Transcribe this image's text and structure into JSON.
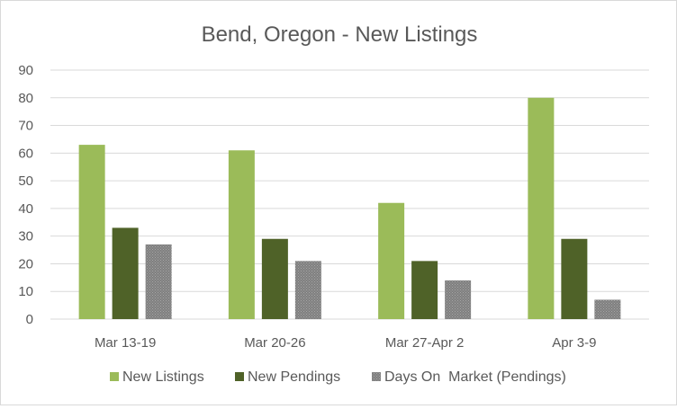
{
  "chart_data": {
    "type": "bar",
    "title": "Bend, Oregon - New Listings",
    "xlabel": "",
    "ylabel": "",
    "categories": [
      "Mar 13-19",
      "Mar 20-26",
      "Mar 27-Apr 2",
      "Apr 3-9"
    ],
    "series": [
      {
        "name": "New Listings",
        "values": [
          63,
          61,
          42,
          80
        ],
        "color": "#9bbb59"
      },
      {
        "name": "New Pendings",
        "values": [
          33,
          29,
          21,
          29
        ],
        "color": "#4f6228"
      },
      {
        "name": "Days On  Market (Pendings)",
        "values": [
          27,
          21,
          14,
          7
        ],
        "color": "#808080"
      }
    ],
    "ylim": [
      0,
      90
    ],
    "yticks": [
      0,
      10,
      20,
      30,
      40,
      50,
      60,
      70,
      80,
      90
    ],
    "grid": true,
    "legend_position": "bottom"
  }
}
